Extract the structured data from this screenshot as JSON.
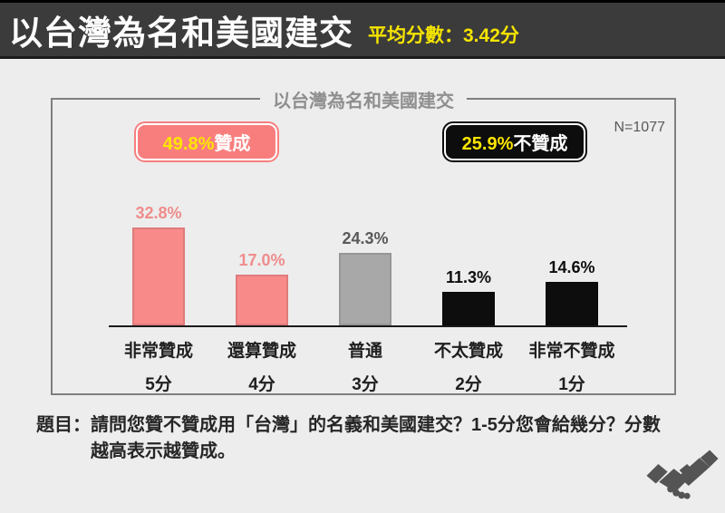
{
  "header": {
    "title": "以台灣為名和美國建交",
    "subtitle": "平均分數：3.42分"
  },
  "panel": {
    "title": "以台灣為名和美國建交",
    "n_label": "N=1077",
    "badges": {
      "agree": {
        "pct": "49.8%",
        "label": "贊成"
      },
      "disagree": {
        "pct": "25.9%",
        "label": "不贊成"
      }
    }
  },
  "chart_data": {
    "type": "bar",
    "title": "以台灣為名和美國建交",
    "n": 1077,
    "mean_score": 3.42,
    "agree_pct": 49.8,
    "disagree_pct": 25.9,
    "categories": [
      "非常贊成",
      "還算贊成",
      "普通",
      "不太贊成",
      "非常不贊成"
    ],
    "category_scores": [
      "5分",
      "4分",
      "3分",
      "2分",
      "1分"
    ],
    "values": [
      32.8,
      17.0,
      24.3,
      11.3,
      14.6
    ],
    "value_labels": [
      "32.8%",
      "17.0%",
      "24.3%",
      "11.3%",
      "14.6%"
    ],
    "bar_colors": [
      "#f98a8a",
      "#f98a8a",
      "#a8a8a8",
      "#0d0d0d",
      "#0d0d0d"
    ],
    "value_label_colors": [
      "#ef8c8c",
      "#ef8c8c",
      "#595959",
      "#0d0d0d",
      "#0d0d0d"
    ],
    "xlabel": "",
    "ylabel": "",
    "ylim": [
      0,
      40
    ],
    "grid": false,
    "legend": false
  },
  "footnote": {
    "line1": "題目：請問您贊不贊成用「台灣」的名義和美國建交？1-5分您會給幾分？分數",
    "line2": "越高表示越贊成。"
  },
  "footer": {
    "icon": "handshake-icon"
  },
  "colors": {
    "page_bg": "#ededed",
    "header_bg": "#3b3b3b",
    "header_title": "#ffffff",
    "accent_yellow": "#f5e400",
    "badge_yellow": "#ffe600",
    "pink": "#f98a8a",
    "gray": "#a8a8a8",
    "black": "#0d0d0d",
    "panel_border": "#7f7f7f",
    "chart_title": "#8f8f8f",
    "n_color": "#595959",
    "axis": "#1a1a1a",
    "text_dark": "#262626",
    "icon_color": "#545454"
  }
}
